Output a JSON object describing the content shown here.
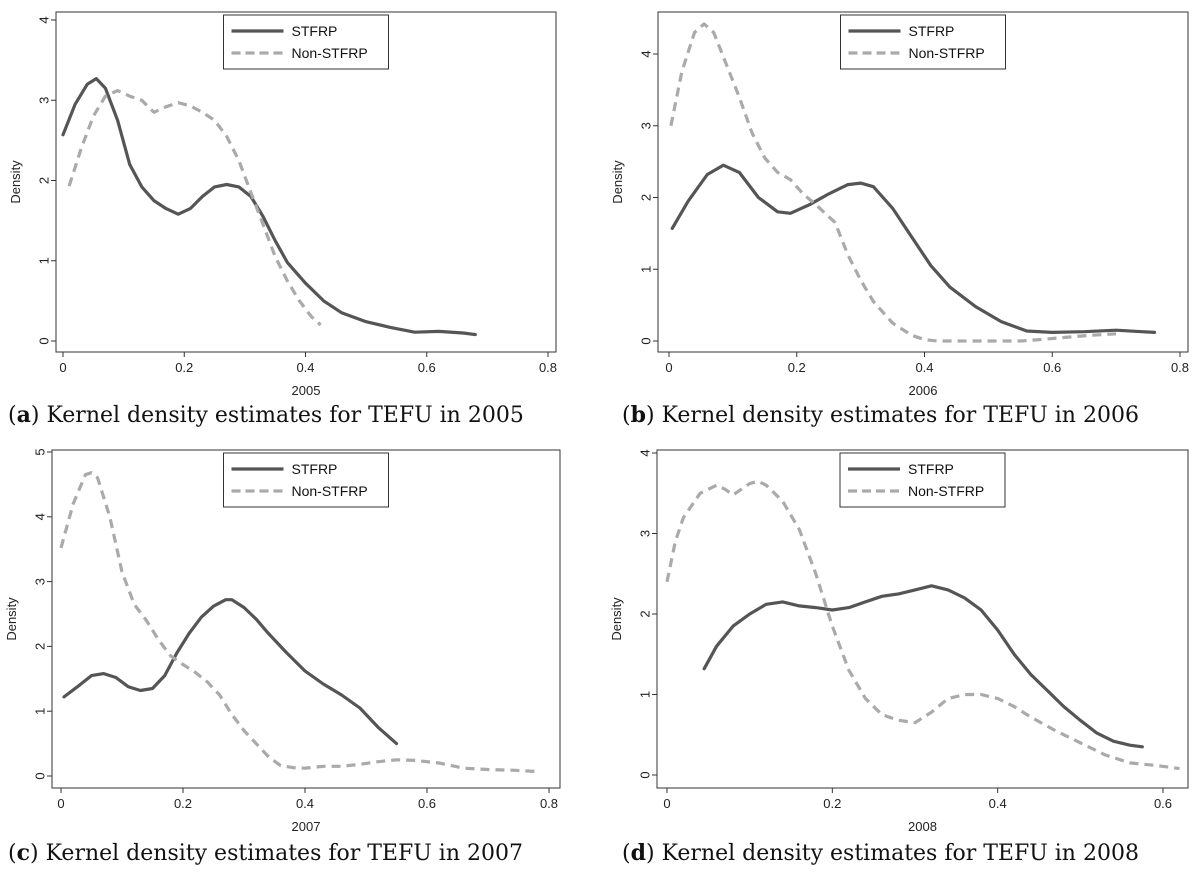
{
  "chart_data": [
    {
      "type": "line",
      "panel": "a",
      "caption_letter": "a",
      "caption_text": " Kernel density estimates for TEFU in 2005",
      "xlabel": "2005",
      "ylabel": "Density",
      "xlim": [
        0,
        0.8
      ],
      "ylim": [
        0,
        4
      ],
      "xticks": [
        "0",
        "0.2",
        "0.4",
        "0.6",
        "0.8"
      ],
      "yticks": [
        "0",
        "1",
        "2",
        "3",
        "4"
      ],
      "legend": "top-center",
      "series": [
        {
          "name": "STFRP",
          "style": "solid",
          "color": "#555555",
          "x": [
            0.0,
            0.02,
            0.04,
            0.055,
            0.07,
            0.09,
            0.11,
            0.13,
            0.15,
            0.17,
            0.19,
            0.21,
            0.23,
            0.25,
            0.27,
            0.29,
            0.31,
            0.33,
            0.35,
            0.37,
            0.4,
            0.43,
            0.46,
            0.5,
            0.54,
            0.58,
            0.62,
            0.66,
            0.68
          ],
          "y": [
            2.57,
            2.95,
            3.2,
            3.27,
            3.15,
            2.75,
            2.2,
            1.92,
            1.75,
            1.65,
            1.58,
            1.65,
            1.8,
            1.92,
            1.95,
            1.92,
            1.8,
            1.55,
            1.25,
            0.98,
            0.72,
            0.5,
            0.35,
            0.24,
            0.17,
            0.11,
            0.12,
            0.1,
            0.08
          ]
        },
        {
          "name": "Non-STFRP",
          "style": "dashed",
          "color": "#aaaaaa",
          "x": [
            0.01,
            0.03,
            0.05,
            0.07,
            0.09,
            0.11,
            0.13,
            0.15,
            0.17,
            0.19,
            0.21,
            0.23,
            0.25,
            0.27,
            0.29,
            0.31,
            0.33,
            0.35,
            0.37,
            0.39,
            0.41,
            0.425
          ],
          "y": [
            1.93,
            2.4,
            2.8,
            3.05,
            3.12,
            3.05,
            3.0,
            2.85,
            2.92,
            2.97,
            2.93,
            2.85,
            2.75,
            2.55,
            2.25,
            1.85,
            1.45,
            1.05,
            0.75,
            0.5,
            0.3,
            0.2
          ]
        }
      ]
    },
    {
      "type": "line",
      "panel": "b",
      "caption_letter": "b",
      "caption_text": " Kernel density estimates for TEFU in 2006",
      "xlabel": "2006",
      "ylabel": "Density",
      "xlim": [
        0,
        0.8
      ],
      "ylim": [
        0,
        4
      ],
      "xticks": [
        "0",
        "0.2",
        "0.4",
        "0.6",
        "0.8"
      ],
      "yticks": [
        "0",
        "1",
        "2",
        "3",
        "4"
      ],
      "legend": "top-center",
      "series": [
        {
          "name": "STFRP",
          "style": "solid",
          "color": "#555555",
          "x": [
            0.005,
            0.03,
            0.06,
            0.085,
            0.11,
            0.14,
            0.17,
            0.19,
            0.22,
            0.25,
            0.28,
            0.3,
            0.32,
            0.35,
            0.38,
            0.41,
            0.44,
            0.48,
            0.52,
            0.56,
            0.6,
            0.65,
            0.7,
            0.74,
            0.76
          ],
          "y": [
            1.57,
            1.95,
            2.32,
            2.45,
            2.35,
            2.0,
            1.8,
            1.78,
            1.9,
            2.05,
            2.18,
            2.2,
            2.15,
            1.85,
            1.45,
            1.05,
            0.75,
            0.48,
            0.27,
            0.14,
            0.12,
            0.13,
            0.15,
            0.13,
            0.12
          ]
        },
        {
          "name": "Non-STFRP",
          "style": "dashed",
          "color": "#aaaaaa",
          "x": [
            0.003,
            0.02,
            0.04,
            0.055,
            0.07,
            0.09,
            0.11,
            0.13,
            0.15,
            0.17,
            0.19,
            0.21,
            0.23,
            0.26,
            0.28,
            0.3,
            0.32,
            0.35,
            0.38,
            0.4,
            0.42,
            0.45,
            0.5,
            0.55,
            0.58,
            0.62,
            0.66,
            0.7
          ],
          "y": [
            3.0,
            3.75,
            4.3,
            4.42,
            4.3,
            3.85,
            3.4,
            2.9,
            2.55,
            2.35,
            2.25,
            2.05,
            1.9,
            1.65,
            1.2,
            0.85,
            0.55,
            0.25,
            0.08,
            0.02,
            0.0,
            0.0,
            0.0,
            0.0,
            0.02,
            0.05,
            0.08,
            0.1
          ]
        }
      ]
    },
    {
      "type": "line",
      "panel": "c",
      "caption_letter": "c",
      "caption_text": " Kernel density estimates for TEFU in 2007",
      "xlabel": "2007",
      "ylabel": "Density",
      "xlim": [
        0,
        0.8
      ],
      "ylim": [
        0,
        5
      ],
      "xticks": [
        "0",
        "0.2",
        "0.4",
        "0.6",
        "0.8"
      ],
      "yticks": [
        "0",
        "1",
        "2",
        "3",
        "4",
        "5"
      ],
      "legend": "top-center",
      "series": [
        {
          "name": "STFRP",
          "style": "solid",
          "color": "#555555",
          "x": [
            0.005,
            0.03,
            0.05,
            0.07,
            0.09,
            0.11,
            0.13,
            0.15,
            0.17,
            0.19,
            0.21,
            0.23,
            0.25,
            0.27,
            0.28,
            0.3,
            0.32,
            0.34,
            0.37,
            0.4,
            0.43,
            0.46,
            0.49,
            0.52,
            0.55
          ],
          "y": [
            1.22,
            1.4,
            1.55,
            1.58,
            1.52,
            1.38,
            1.32,
            1.35,
            1.55,
            1.9,
            2.2,
            2.45,
            2.62,
            2.72,
            2.72,
            2.6,
            2.42,
            2.2,
            1.9,
            1.62,
            1.42,
            1.25,
            1.05,
            0.75,
            0.5
          ]
        },
        {
          "name": "Non-STFRP",
          "style": "dashed",
          "color": "#aaaaaa",
          "x": [
            0.0,
            0.02,
            0.04,
            0.05,
            0.06,
            0.08,
            0.1,
            0.12,
            0.14,
            0.16,
            0.18,
            0.2,
            0.22,
            0.24,
            0.26,
            0.28,
            0.3,
            0.32,
            0.34,
            0.36,
            0.38,
            0.4,
            0.43,
            0.46,
            0.49,
            0.52,
            0.55,
            0.58,
            0.62,
            0.66,
            0.7,
            0.74,
            0.78
          ],
          "y": [
            3.52,
            4.2,
            4.65,
            4.68,
            4.6,
            4.0,
            3.15,
            2.65,
            2.4,
            2.1,
            1.85,
            1.72,
            1.6,
            1.45,
            1.25,
            0.95,
            0.7,
            0.5,
            0.3,
            0.16,
            0.13,
            0.12,
            0.15,
            0.15,
            0.18,
            0.22,
            0.25,
            0.24,
            0.2,
            0.12,
            0.1,
            0.09,
            0.07
          ]
        }
      ]
    },
    {
      "type": "line",
      "panel": "d",
      "caption_letter": "d",
      "caption_text": " Kernel density estimates for TEFU in 2008",
      "xlabel": "2008",
      "ylabel": "Density",
      "xlim": [
        0,
        0.6
      ],
      "ylim": [
        0,
        4
      ],
      "xticks": [
        "0",
        "0.2",
        "0.4",
        "0.6"
      ],
      "yticks": [
        "0",
        "1",
        "2",
        "3",
        "4"
      ],
      "legend": "top-center",
      "series": [
        {
          "name": "STFRP",
          "style": "solid",
          "color": "#555555",
          "x": [
            0.045,
            0.06,
            0.08,
            0.1,
            0.12,
            0.14,
            0.16,
            0.18,
            0.2,
            0.22,
            0.24,
            0.26,
            0.28,
            0.3,
            0.32,
            0.34,
            0.36,
            0.38,
            0.4,
            0.42,
            0.44,
            0.46,
            0.48,
            0.5,
            0.52,
            0.54,
            0.56,
            0.575
          ],
          "y": [
            1.32,
            1.6,
            1.85,
            2.0,
            2.12,
            2.15,
            2.1,
            2.08,
            2.05,
            2.08,
            2.15,
            2.22,
            2.25,
            2.3,
            2.35,
            2.3,
            2.2,
            2.05,
            1.8,
            1.5,
            1.25,
            1.05,
            0.85,
            0.68,
            0.52,
            0.42,
            0.37,
            0.35
          ]
        },
        {
          "name": "Non-STFRP",
          "style": "dashed",
          "color": "#aaaaaa",
          "x": [
            0.0,
            0.01,
            0.02,
            0.04,
            0.06,
            0.07,
            0.08,
            0.09,
            0.1,
            0.11,
            0.12,
            0.14,
            0.16,
            0.18,
            0.2,
            0.22,
            0.24,
            0.26,
            0.28,
            0.3,
            0.32,
            0.34,
            0.36,
            0.38,
            0.4,
            0.42,
            0.44,
            0.47,
            0.5,
            0.53,
            0.56,
            0.59,
            0.62
          ],
          "y": [
            2.4,
            2.9,
            3.2,
            3.5,
            3.6,
            3.55,
            3.48,
            3.55,
            3.62,
            3.65,
            3.6,
            3.4,
            3.05,
            2.5,
            1.85,
            1.3,
            0.95,
            0.75,
            0.68,
            0.65,
            0.78,
            0.95,
            1.0,
            1.0,
            0.95,
            0.85,
            0.72,
            0.55,
            0.4,
            0.25,
            0.15,
            0.12,
            0.08
          ]
        }
      ]
    }
  ]
}
